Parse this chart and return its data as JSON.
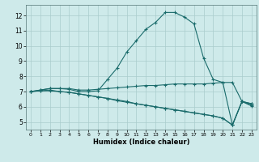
{
  "xlabel": "Humidex (Indice chaleur)",
  "bg_color": "#ceeaea",
  "grid_color": "#aacccc",
  "line_color": "#1a6b6b",
  "xlim": [
    -0.5,
    23.5
  ],
  "ylim": [
    4.5,
    12.7
  ],
  "xticks": [
    0,
    1,
    2,
    3,
    4,
    5,
    6,
    7,
    8,
    9,
    10,
    11,
    12,
    13,
    14,
    15,
    16,
    17,
    18,
    19,
    20,
    21,
    22,
    23
  ],
  "yticks": [
    5,
    6,
    7,
    8,
    9,
    10,
    11,
    12
  ],
  "series": [
    [
      7.0,
      7.1,
      7.2,
      7.2,
      7.15,
      7.0,
      7.0,
      7.05,
      7.8,
      8.55,
      9.6,
      10.35,
      11.1,
      11.55,
      12.2,
      12.2,
      11.9,
      11.45,
      9.2,
      7.8,
      7.6,
      4.8,
      6.35,
      6.2
    ],
    [
      7.0,
      7.1,
      7.2,
      7.2,
      7.2,
      7.1,
      7.1,
      7.15,
      7.2,
      7.25,
      7.3,
      7.35,
      7.4,
      7.4,
      7.45,
      7.5,
      7.5,
      7.5,
      7.5,
      7.55,
      7.6,
      7.6,
      6.35,
      6.2
    ],
    [
      7.0,
      7.05,
      7.1,
      7.0,
      6.95,
      6.85,
      6.75,
      6.65,
      6.55,
      6.45,
      6.35,
      6.2,
      6.1,
      6.0,
      5.9,
      5.8,
      5.7,
      5.6,
      5.5,
      5.4,
      5.25,
      4.8,
      6.35,
      6.1
    ],
    [
      7.0,
      7.05,
      7.05,
      7.0,
      6.95,
      6.85,
      6.75,
      6.65,
      6.55,
      6.4,
      6.3,
      6.2,
      6.1,
      6.0,
      5.9,
      5.8,
      5.7,
      5.6,
      5.5,
      5.4,
      5.25,
      4.8,
      6.35,
      6.05
    ]
  ]
}
